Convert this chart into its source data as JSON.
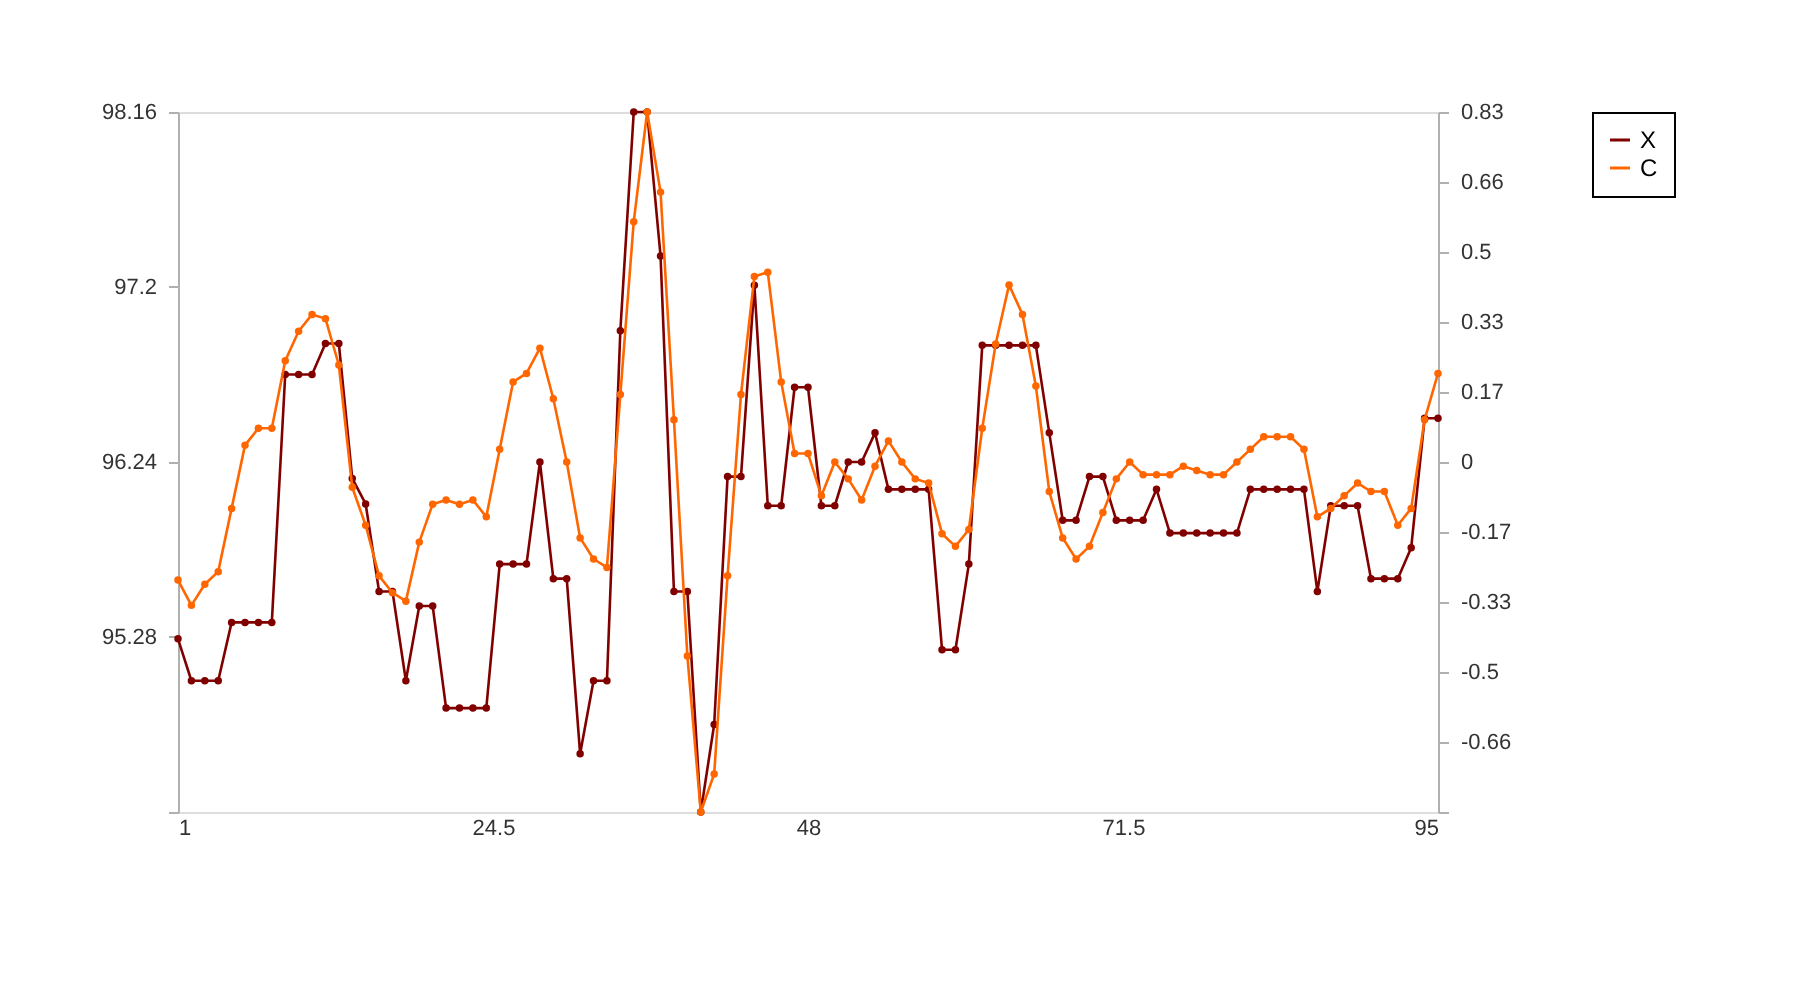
{
  "chart_data": {
    "type": "line",
    "x": [
      1,
      2,
      3,
      4,
      5,
      6,
      7,
      8,
      9,
      10,
      11,
      12,
      13,
      14,
      15,
      16,
      17,
      18,
      19,
      20,
      21,
      22,
      23,
      24,
      25,
      26,
      27,
      28,
      29,
      30,
      31,
      32,
      33,
      34,
      35,
      36,
      37,
      38,
      39,
      40,
      41,
      42,
      43,
      44,
      45,
      46,
      47,
      48,
      49,
      50,
      51,
      52,
      53,
      54,
      55,
      56,
      57,
      58,
      59,
      60,
      61,
      62,
      63,
      64,
      65,
      66,
      67,
      68,
      69,
      70,
      71,
      72,
      73,
      74,
      75,
      76,
      77,
      78,
      79,
      80,
      81,
      82,
      83,
      84,
      85,
      86,
      87,
      88,
      89,
      90,
      91,
      92,
      93,
      94,
      95
    ],
    "series": [
      {
        "name": "X",
        "color": "#800000",
        "values": [
          95.27,
          95.04,
          95.04,
          95.04,
          95.36,
          95.36,
          95.36,
          95.36,
          96.72,
          96.72,
          96.72,
          96.89,
          96.89,
          96.15,
          96.01,
          95.53,
          95.53,
          95.04,
          95.45,
          95.45,
          94.89,
          94.89,
          94.89,
          94.89,
          95.68,
          95.68,
          95.68,
          96.24,
          95.6,
          95.6,
          94.64,
          95.04,
          95.04,
          96.96,
          98.16,
          98.16,
          97.37,
          95.53,
          95.53,
          94.32,
          94.8,
          96.16,
          96.16,
          97.21,
          96.0,
          96.0,
          96.65,
          96.65,
          96.0,
          96.0,
          96.24,
          96.24,
          96.4,
          96.09,
          96.09,
          96.09,
          96.09,
          95.21,
          95.21,
          95.68,
          96.88,
          96.88,
          96.88,
          96.88,
          96.88,
          96.4,
          95.92,
          95.92,
          96.16,
          96.16,
          95.92,
          95.92,
          95.92,
          96.09,
          95.85,
          95.85,
          95.85,
          95.85,
          95.85,
          95.85,
          96.09,
          96.09,
          96.09,
          96.09,
          96.09,
          95.53,
          96.0,
          96.0,
          96.0,
          95.6,
          95.6,
          95.6,
          95.77,
          96.48,
          96.48
        ]
      },
      {
        "name": "C",
        "color": "#ff6600",
        "axis": "y2",
        "values": [
          -0.28,
          -0.34,
          -0.29,
          -0.26,
          -0.11,
          0.04,
          0.08,
          0.08,
          0.24,
          0.31,
          0.35,
          0.34,
          0.23,
          -0.06,
          -0.15,
          -0.27,
          -0.31,
          -0.33,
          -0.19,
          -0.1,
          -0.09,
          -0.1,
          -0.09,
          -0.13,
          0.03,
          0.19,
          0.21,
          0.27,
          0.15,
          0.0,
          -0.18,
          -0.23,
          -0.25,
          0.16,
          0.57,
          0.83,
          0.64,
          0.1,
          -0.46,
          -0.83,
          -0.74,
          -0.27,
          0.16,
          0.44,
          0.45,
          0.19,
          0.02,
          0.02,
          -0.08,
          0.0,
          -0.04,
          -0.09,
          -0.01,
          0.05,
          0.0,
          -0.04,
          -0.05,
          -0.17,
          -0.2,
          -0.16,
          0.08,
          0.28,
          0.42,
          0.35,
          0.18,
          -0.07,
          -0.18,
          -0.23,
          -0.2,
          -0.12,
          -0.04,
          0.0,
          -0.03,
          -0.03,
          -0.03,
          -0.01,
          -0.02,
          -0.03,
          -0.03,
          0.0,
          0.03,
          0.06,
          0.06,
          0.06,
          0.03,
          -0.13,
          -0.11,
          -0.08,
          -0.05,
          -0.07,
          -0.07,
          -0.15,
          -0.11,
          0.1,
          0.21
        ]
      }
    ],
    "xlim": [
      1,
      95
    ],
    "xticks": [
      1,
      24.5,
      48,
      71.5,
      95
    ],
    "ylim": [
      94.32,
      98.16
    ],
    "yticks": [
      {
        "value": 94.32,
        "label": null
      },
      95.28,
      96.24,
      97.2,
      98.16
    ],
    "y2lim": [
      -0.83,
      0.83
    ],
    "y2ticks": [
      {
        "value": -0.83,
        "label": null
      },
      {
        "value": -0.664,
        "label": "-0.66"
      },
      {
        "value": -0.498,
        "label": "-0.5"
      },
      {
        "value": -0.332,
        "label": "-0.33"
      },
      {
        "value": -0.166,
        "label": "-0.17"
      },
      0,
      {
        "value": 0.166,
        "label": "0.17"
      },
      {
        "value": 0.332,
        "label": "0.33"
      },
      {
        "value": 0.498,
        "label": "0.5"
      },
      {
        "value": 0.664,
        "label": "0.66"
      },
      0.83
    ],
    "grid": false,
    "legend": "right",
    "marker": "circle",
    "line_style": "solid"
  }
}
